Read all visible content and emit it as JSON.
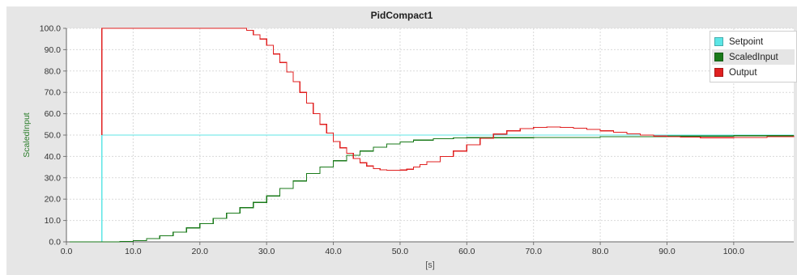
{
  "chart_data": {
    "type": "line",
    "title": "PidCompact1",
    "xlabel": "[s]",
    "ylabel": "ScaledInput",
    "xlim": [
      0,
      109
    ],
    "ylim": [
      0,
      100
    ],
    "x_ticks": [
      "0.0",
      "10.0",
      "20.0",
      "30.0",
      "40.0",
      "50.0",
      "60.0",
      "70.0",
      "80.0",
      "90.0",
      "100.0"
    ],
    "y_ticks": [
      "0.0",
      "10.0",
      "20.0",
      "30.0",
      "40.0",
      "50.0",
      "60.0",
      "70.0",
      "80.0",
      "90.0",
      "100.0"
    ],
    "grid": true,
    "legend_position": "top-right",
    "series": [
      {
        "name": "Setpoint",
        "color": "#5ce6e6",
        "x": [
          0.5,
          5.3,
          5.3,
          109
        ],
        "y": [
          0,
          0,
          50,
          50
        ]
      },
      {
        "name": "ScaledInput",
        "color": "#1a7a1a",
        "x": [
          0.5,
          5.3,
          8,
          10,
          12,
          14,
          16,
          18,
          20,
          22,
          24,
          26,
          28,
          30,
          32,
          34,
          36,
          38,
          40,
          42,
          44,
          46,
          48,
          50,
          52,
          55,
          58,
          60,
          64,
          70,
          80,
          90,
          100,
          109
        ],
        "y": [
          0,
          0,
          0.2,
          0.6,
          1.5,
          2.8,
          4.5,
          6.5,
          8.5,
          11,
          13.5,
          16,
          18.5,
          21.5,
          25,
          28.5,
          32,
          35,
          38,
          40.5,
          42.5,
          44.3,
          45.8,
          46.8,
          47.6,
          48.3,
          48.7,
          48.8,
          48.8,
          48.9,
          49.2,
          49.5,
          49.7,
          49.8
        ]
      },
      {
        "name": "Output",
        "color": "#e02020",
        "x": [
          0.5,
          5.3,
          5.3,
          5.3,
          25.5,
          27,
          28,
          29,
          30,
          31,
          32,
          33,
          34,
          35,
          36,
          37,
          38,
          39,
          40,
          41,
          42,
          43,
          44,
          45,
          46,
          47,
          48,
          49,
          50,
          51,
          52,
          53,
          54,
          56,
          58,
          60,
          62,
          64,
          66,
          68,
          70,
          72,
          74,
          76,
          78,
          80,
          82,
          84,
          86,
          88,
          90,
          92,
          95,
          100,
          105,
          109
        ],
        "y": [
          null,
          null,
          50,
          100,
          100,
          99,
          97,
          95,
          92,
          88,
          84,
          79.5,
          75,
          70,
          65,
          60,
          55,
          51,
          47,
          44,
          41.5,
          39,
          37,
          35.5,
          34.3,
          33.7,
          33.5,
          33.5,
          33.6,
          34,
          35,
          36.2,
          37.5,
          40,
          42.5,
          45.5,
          48.5,
          50.5,
          52,
          53,
          53.6,
          53.8,
          53.6,
          53.2,
          52.6,
          52,
          51.3,
          50.6,
          50,
          49.5,
          49.2,
          49,
          48.8,
          48.9,
          49.2,
          49.6
        ]
      }
    ]
  }
}
